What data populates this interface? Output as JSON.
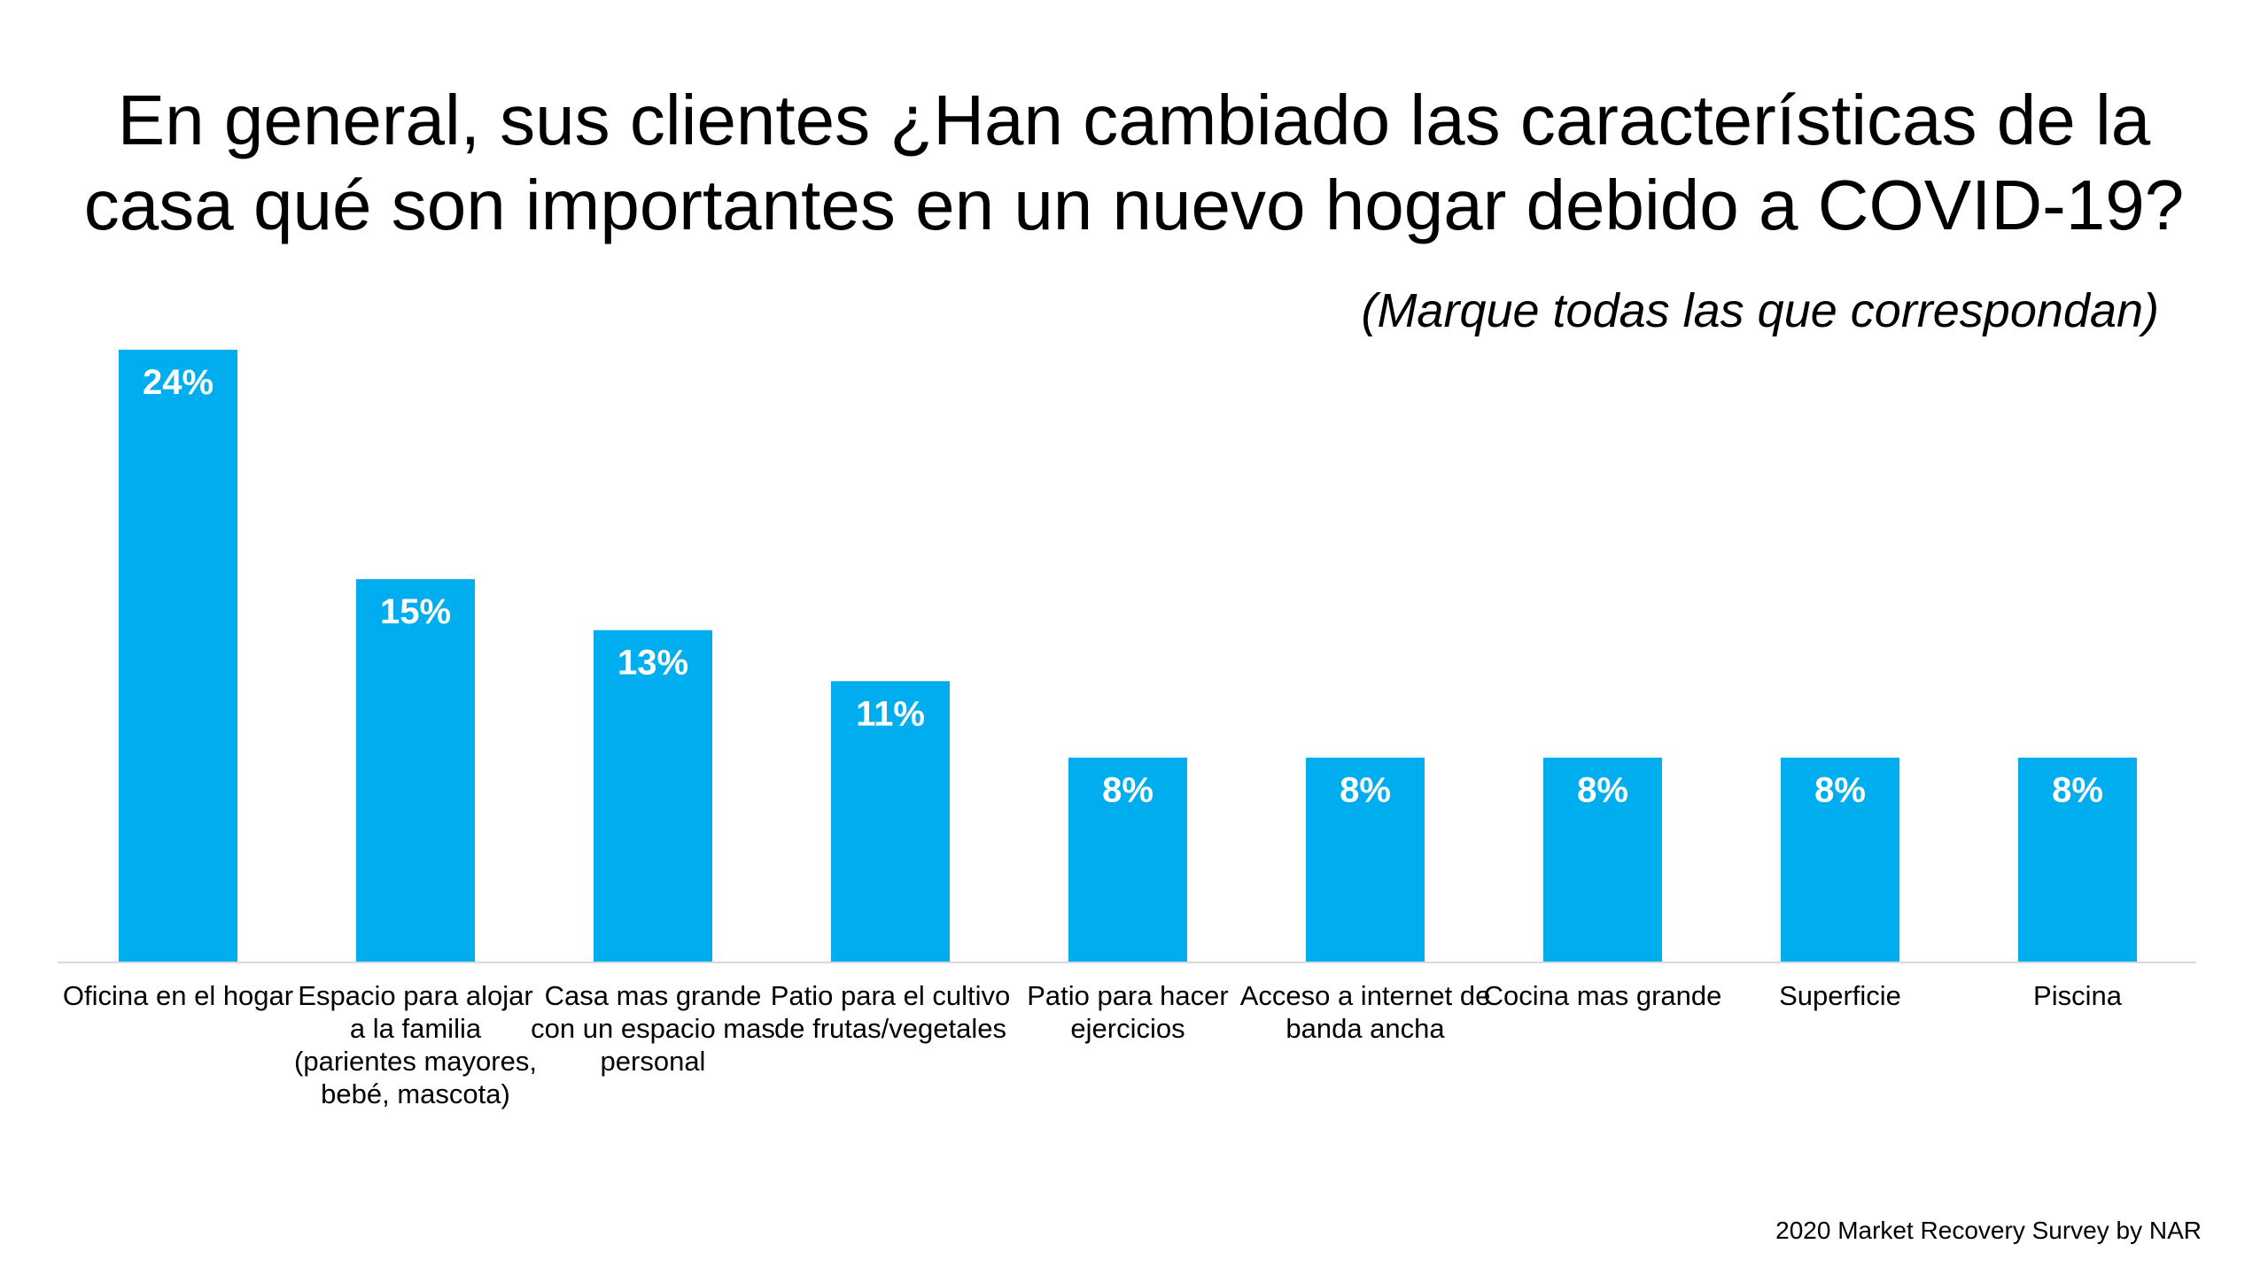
{
  "title_lines": [
    "En general, sus clientes ¿Han cambiado las características de la",
    "casa qué son importantes en un nuevo hogar debido a COVID-19?"
  ],
  "subtitle": "(Marque todas las que correspondan)",
  "footer": "2020 Market Recovery Survey by NAR",
  "chart_data": {
    "type": "bar",
    "title": "En general, sus clientes ¿Han cambiado las características de la casa qué son importantes en un nuevo hogar debido a COVID-19?",
    "subtitle": "(Marque todas las que correspondan)",
    "categories": [
      "Oficina en el hogar",
      "Espacio para alojar a la familia (parientes mayores, bebé, mascota)",
      "Casa mas grande con un espacio mas personal",
      "Patio para el cultivo de frutas/vegetales",
      "Patio para hacer ejercicios",
      "Acceso a internet de banda ancha",
      "Cocina mas grande",
      "Superficie",
      "Piscina"
    ],
    "values": [
      24,
      15,
      13,
      11,
      8,
      8,
      8,
      8,
      8
    ],
    "data_labels": [
      "24%",
      "15%",
      "13%",
      "11%",
      "8%",
      "8%",
      "8%",
      "8%",
      "8%"
    ],
    "unit": "%",
    "ylim": [
      0,
      24
    ],
    "grid": false,
    "bar_color": "#00AEEF",
    "label_color": "#FFFFFF"
  }
}
